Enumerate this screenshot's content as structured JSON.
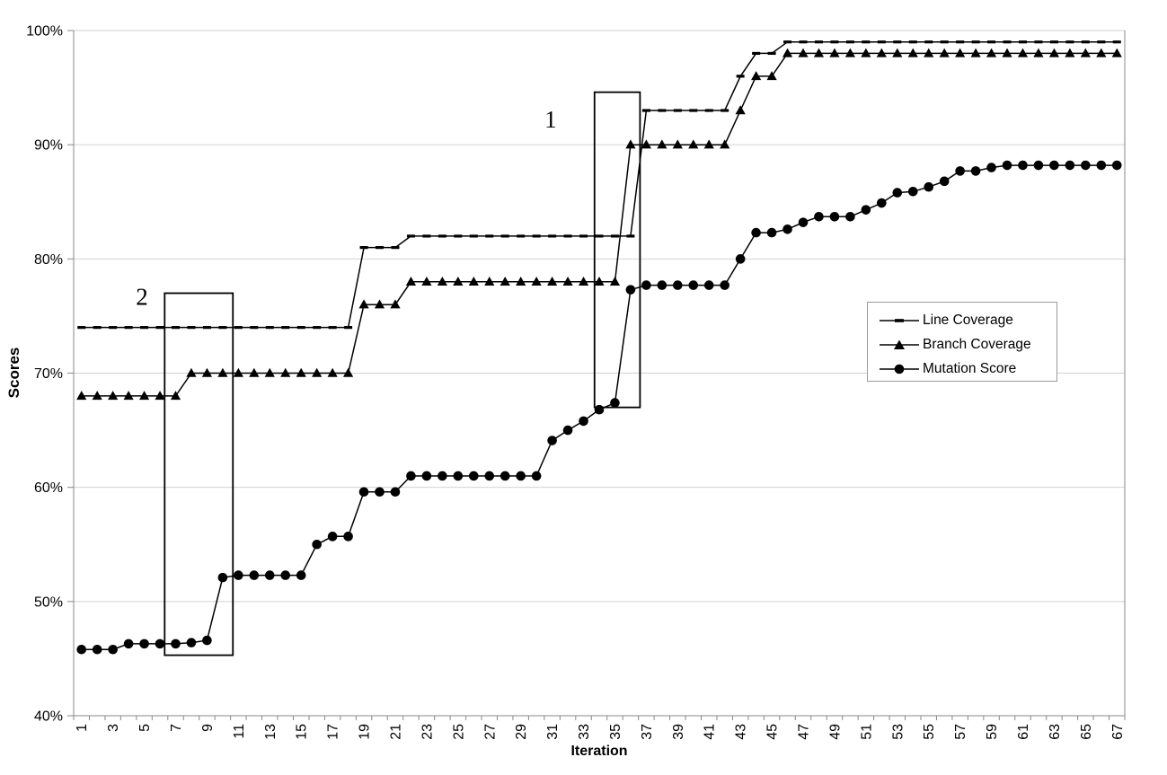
{
  "chart_data": {
    "type": "line",
    "title": "",
    "xlabel": "Iteration",
    "ylabel": "Scores",
    "x_range": [
      1,
      67
    ],
    "xtick_labels": [
      "1",
      "3",
      "5",
      "7",
      "9",
      "11",
      "13",
      "15",
      "17",
      "19",
      "21",
      "23",
      "25",
      "27",
      "29",
      "31",
      "33",
      "35",
      "37",
      "39",
      "41",
      "43",
      "45",
      "47",
      "49",
      "51",
      "53",
      "55",
      "57",
      "59",
      "61",
      "63",
      "65",
      "67"
    ],
    "ylim": [
      40,
      100
    ],
    "yticks": [
      40,
      50,
      60,
      70,
      80,
      90,
      100
    ],
    "ytick_suffix": "%",
    "grid": "horizontal",
    "legend_position": "middle-right",
    "series": [
      {
        "name": "Line Coverage",
        "marker": "dash",
        "color": "#000000",
        "values": [
          74,
          74,
          74,
          74,
          74,
          74,
          74,
          74,
          74,
          74,
          74,
          74,
          74,
          74,
          74,
          74,
          74,
          74,
          81,
          81,
          81,
          82,
          82,
          82,
          82,
          82,
          82,
          82,
          82,
          82,
          82,
          82,
          82,
          82,
          82,
          82,
          93,
          93,
          93,
          93,
          93,
          93,
          96,
          98,
          98,
          99,
          99,
          99,
          99,
          99,
          99,
          99,
          99,
          99,
          99,
          99,
          99,
          99,
          99,
          99,
          99,
          99,
          99,
          99,
          99,
          99,
          99
        ]
      },
      {
        "name": "Branch Coverage",
        "marker": "triangle",
        "color": "#000000",
        "values": [
          68,
          68,
          68,
          68,
          68,
          68,
          68,
          70,
          70,
          70,
          70,
          70,
          70,
          70,
          70,
          70,
          70,
          70,
          76,
          76,
          76,
          78,
          78,
          78,
          78,
          78,
          78,
          78,
          78,
          78,
          78,
          78,
          78,
          78,
          78,
          90,
          90,
          90,
          90,
          90,
          90,
          90,
          93,
          96,
          96,
          98,
          98,
          98,
          98,
          98,
          98,
          98,
          98,
          98,
          98,
          98,
          98,
          98,
          98,
          98,
          98,
          98,
          98,
          98,
          98,
          98,
          98
        ]
      },
      {
        "name": "Mutation Score",
        "marker": "circle",
        "color": "#000000",
        "values": [
          45.8,
          45.8,
          45.8,
          46.3,
          46.3,
          46.3,
          46.3,
          46.4,
          46.6,
          52.1,
          52.3,
          52.3,
          52.3,
          52.3,
          52.3,
          55.0,
          55.7,
          55.7,
          59.6,
          59.6,
          59.6,
          61,
          61,
          61,
          61,
          61,
          61,
          61,
          61,
          61,
          64.1,
          65.0,
          65.8,
          66.8,
          67.4,
          77.3,
          77.7,
          77.7,
          77.7,
          77.7,
          77.7,
          77.7,
          80.0,
          82.3,
          82.3,
          82.6,
          83.2,
          83.7,
          83.7,
          83.7,
          84.3,
          84.9,
          85.8,
          85.9,
          86.3,
          86.8,
          87.7,
          87.7,
          88.0,
          88.2,
          88.2,
          88.2,
          88.2,
          88.2,
          88.2,
          88.2,
          88.2
        ]
      }
    ],
    "annotations": [
      {
        "label": "1",
        "box": {
          "x1_iter": 33.7,
          "x2_iter": 36.6,
          "y1_val": 94.6,
          "y2_val": 67.0
        },
        "label_pos": {
          "x_iter": 30.9,
          "y_val": 92.2
        }
      },
      {
        "label": "2",
        "box": {
          "x1_iter": 6.3,
          "x2_iter": 10.65,
          "y1_val": 77.0,
          "y2_val": 45.3
        },
        "label_pos": {
          "x_iter": 4.85,
          "y_val": 76.7
        }
      }
    ]
  },
  "colors": {
    "series": "#000000",
    "grid": "#d2d2d2",
    "axis": "#888888",
    "legend_border": "#9a9a9a",
    "background": "#ffffff",
    "text": "#000000"
  }
}
